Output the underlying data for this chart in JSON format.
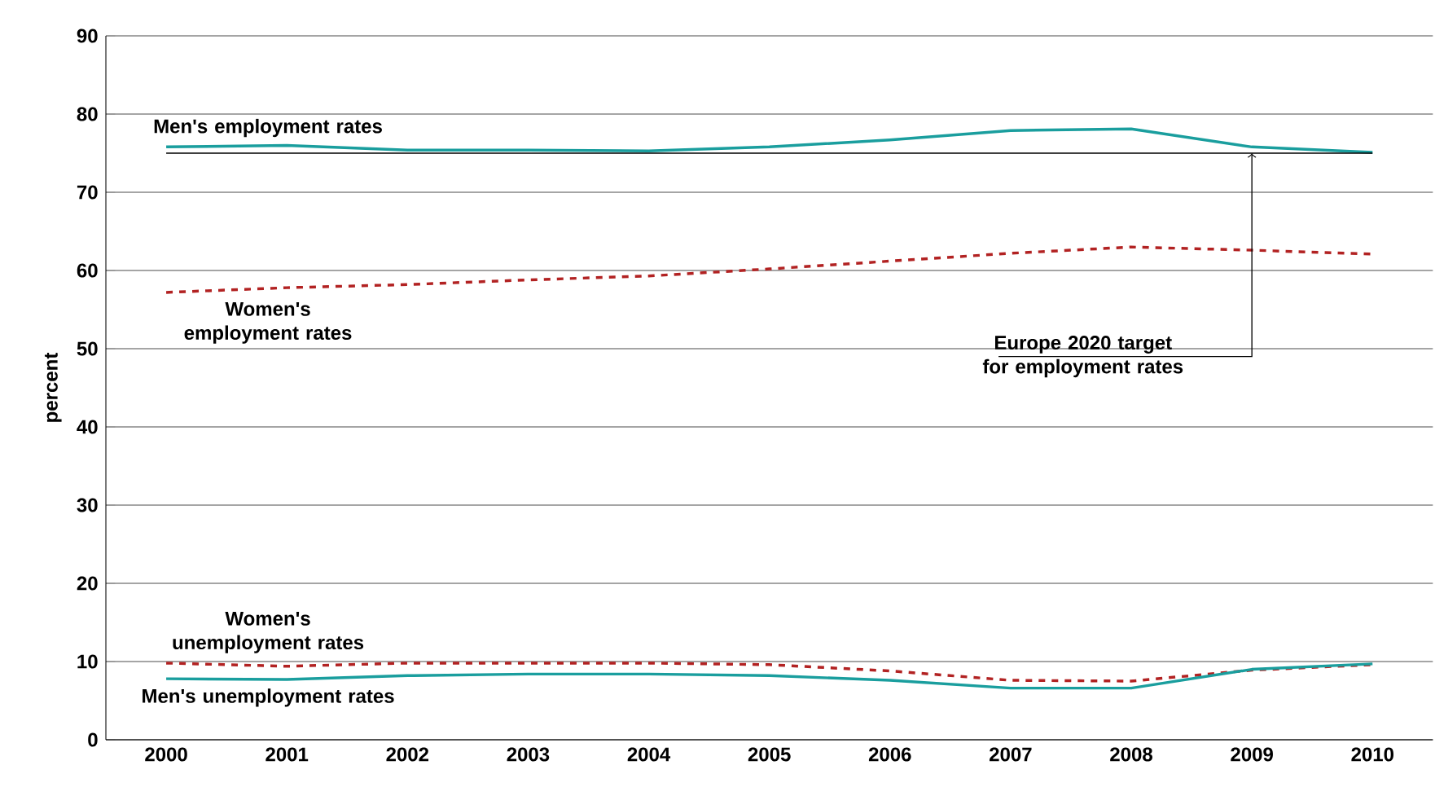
{
  "chart_data": {
    "type": "line",
    "ylabel": "percent",
    "categories": [
      "2000",
      "2001",
      "2002",
      "2003",
      "2004",
      "2005",
      "2006",
      "2007",
      "2008",
      "2009",
      "2010"
    ],
    "ylim": [
      0,
      90
    ],
    "yticks": [
      0,
      10,
      20,
      30,
      40,
      50,
      60,
      70,
      80,
      90
    ],
    "grid": "y",
    "legend": false,
    "marker": "none",
    "series": [
      {
        "name": "Men's employment rates",
        "color": "#1a9e9e",
        "line_style": "solid",
        "values": [
          75.8,
          76.0,
          75.4,
          75.4,
          75.3,
          75.8,
          76.7,
          77.9,
          78.1,
          75.8,
          75.1
        ]
      },
      {
        "name": "Women's employment rates",
        "color": "#b22222",
        "line_style": "dashed",
        "values": [
          57.2,
          57.8,
          58.2,
          58.8,
          59.3,
          60.2,
          61.2,
          62.2,
          63.0,
          62.6,
          62.1
        ]
      },
      {
        "name": "Women's unemployment rates",
        "color": "#b22222",
        "line_style": "dashed",
        "values": [
          9.8,
          9.4,
          9.8,
          9.8,
          9.8,
          9.6,
          8.8,
          7.6,
          7.5,
          8.9,
          9.6
        ]
      },
      {
        "name": "Men's unemployment rates",
        "color": "#1a9e9e",
        "line_style": "solid",
        "values": [
          7.8,
          7.7,
          8.2,
          8.4,
          8.4,
          8.2,
          7.6,
          6.6,
          6.6,
          9.0,
          9.7
        ]
      }
    ],
    "ref_lines": [
      {
        "axis": "y",
        "value": 75,
        "label": "Europe 2020 target for employment rates",
        "color": "#000000"
      }
    ]
  }
}
